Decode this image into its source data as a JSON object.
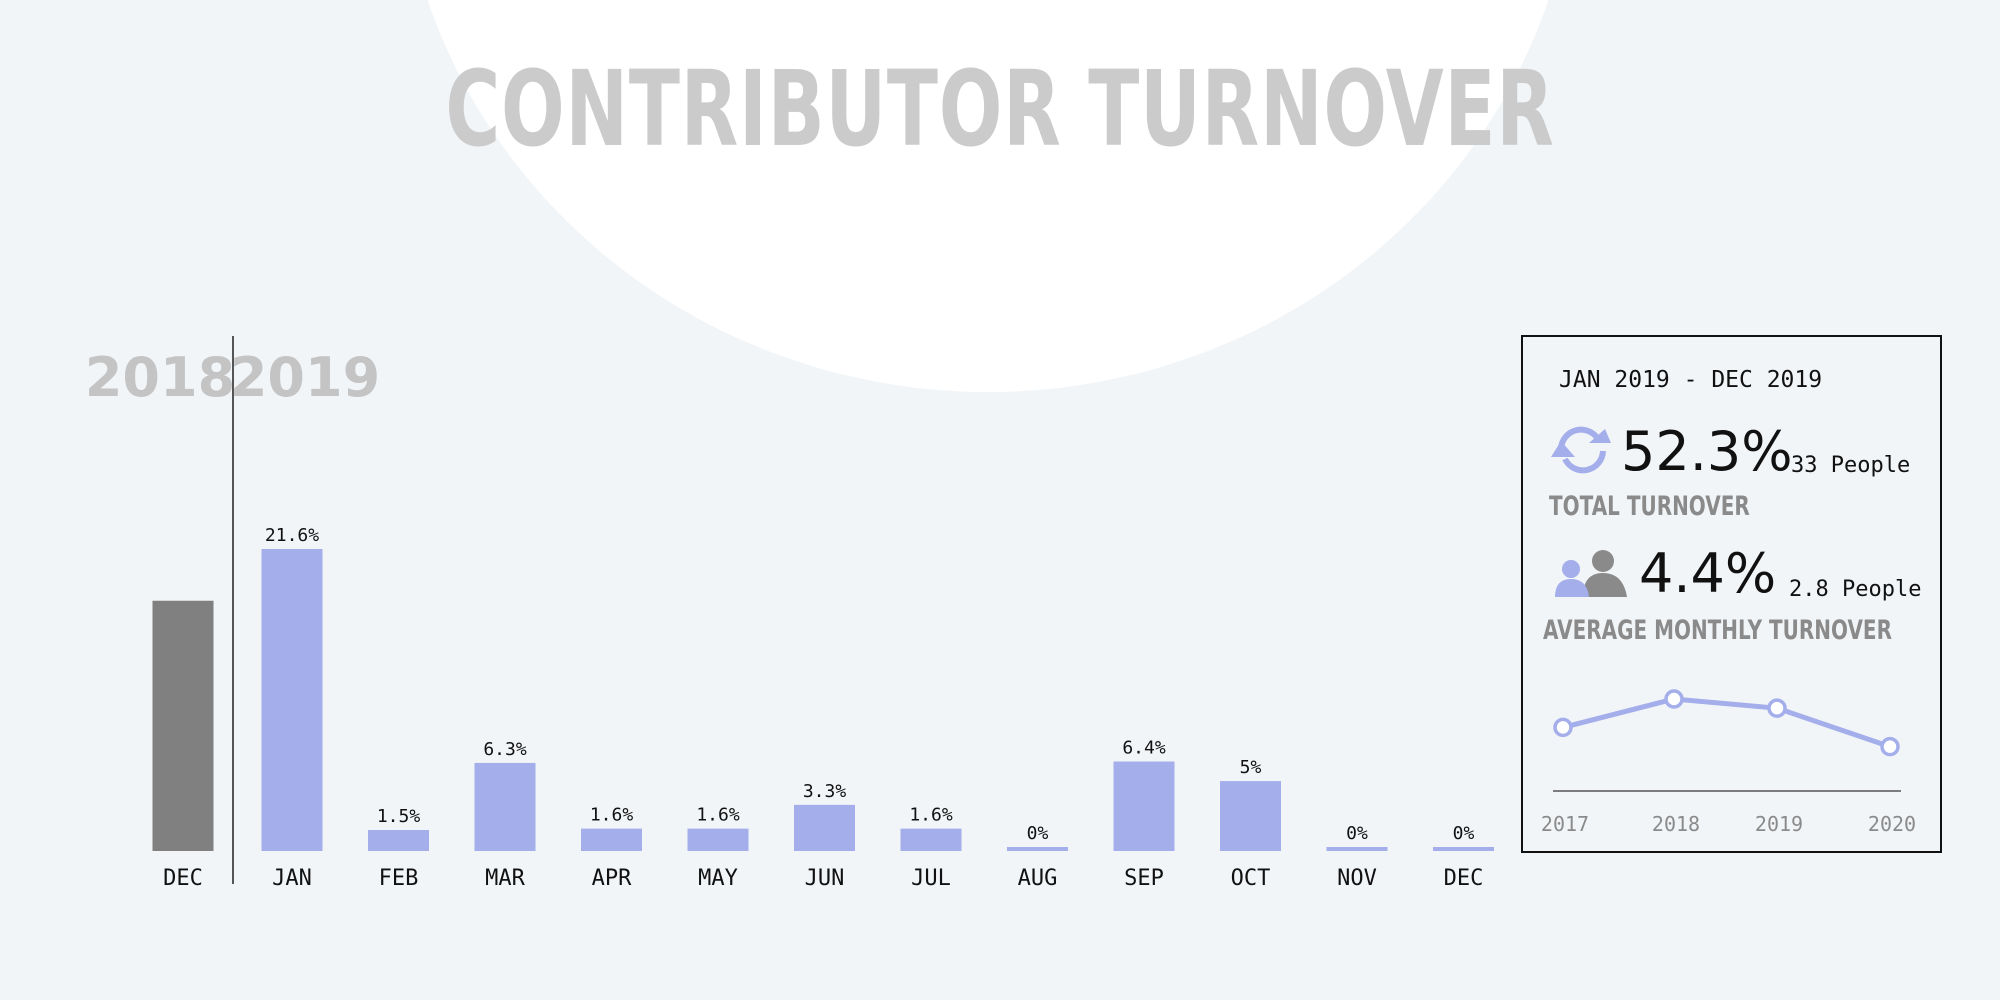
{
  "title": "CONTRIBUTOR TURNOVER",
  "colors": {
    "bar_2019": "#a3aeea",
    "bar_2018": "#808080",
    "panel_border": "#111111"
  },
  "chart_data": [
    {
      "type": "bar",
      "title": "CONTRIBUTOR TURNOVER",
      "groups": [
        {
          "year": "2018",
          "categories": [
            "DEC"
          ],
          "values": [
            17.9
          ],
          "labels": [
            ""
          ]
        },
        {
          "year": "2019",
          "categories": [
            "JAN",
            "FEB",
            "MAR",
            "APR",
            "MAY",
            "JUN",
            "JUL",
            "AUG",
            "SEP",
            "OCT",
            "NOV",
            "DEC"
          ],
          "values": [
            21.6,
            1.5,
            6.3,
            1.6,
            1.6,
            3.3,
            1.6,
            0,
            6.4,
            5,
            0,
            0
          ],
          "labels": [
            "21.6%",
            "1.5%",
            "6.3%",
            "1.6%",
            "1.6%",
            "3.3%",
            "1.6%",
            "0%",
            "6.4%",
            "5%",
            "0%",
            "0%"
          ]
        }
      ],
      "ylim": [
        0,
        21.6
      ],
      "grid": false
    },
    {
      "type": "line",
      "x": [
        "2017",
        "2018",
        "2019",
        "2020"
      ],
      "values": [
        6.5,
        9.6,
        8.6,
        4.4
      ],
      "ylim": [
        0,
        12
      ],
      "grid": false
    }
  ],
  "summary": {
    "period": "JAN 2019 - DEC 2019",
    "total": {
      "icon": "refresh-icon",
      "value": "52.3%",
      "people": "33 People",
      "caption": "TOTAL TURNOVER"
    },
    "average": {
      "icon": "people-icon",
      "value": "4.4%",
      "people": "2.8 People",
      "caption": "AVERAGE MONTHLY TURNOVER"
    }
  }
}
